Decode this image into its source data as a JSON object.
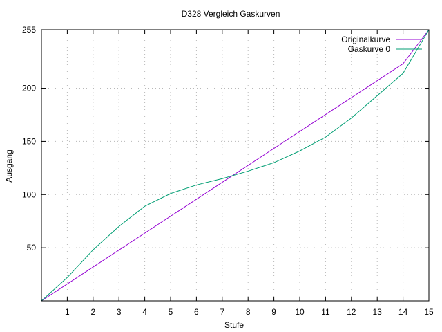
{
  "chart_data": {
    "type": "line",
    "title": "D328 Vergleich Gaskurven",
    "xlabel": "Stufe",
    "ylabel": "Ausgang",
    "xlim": [
      0,
      15
    ],
    "ylim": [
      0,
      255
    ],
    "xticks": [
      1,
      2,
      3,
      4,
      5,
      6,
      7,
      8,
      9,
      10,
      11,
      12,
      13,
      14,
      15
    ],
    "yticks": [
      50,
      100,
      150,
      200,
      255
    ],
    "grid": true,
    "legend_position": "top-right",
    "series": [
      {
        "name": "Originalkurve",
        "color": "#9400d3",
        "x": [
          0,
          14,
          15
        ],
        "y": [
          0,
          223,
          255
        ]
      },
      {
        "name": "Gaskurve 0",
        "color": "#009e73",
        "x": [
          0,
          1,
          2,
          3,
          4,
          5,
          6,
          7,
          8,
          9,
          10,
          11,
          12,
          13,
          14,
          15
        ],
        "y": [
          0,
          22,
          48,
          70,
          89,
          101,
          109,
          115,
          122,
          130,
          141,
          154,
          172,
          193,
          214,
          255
        ]
      }
    ]
  }
}
